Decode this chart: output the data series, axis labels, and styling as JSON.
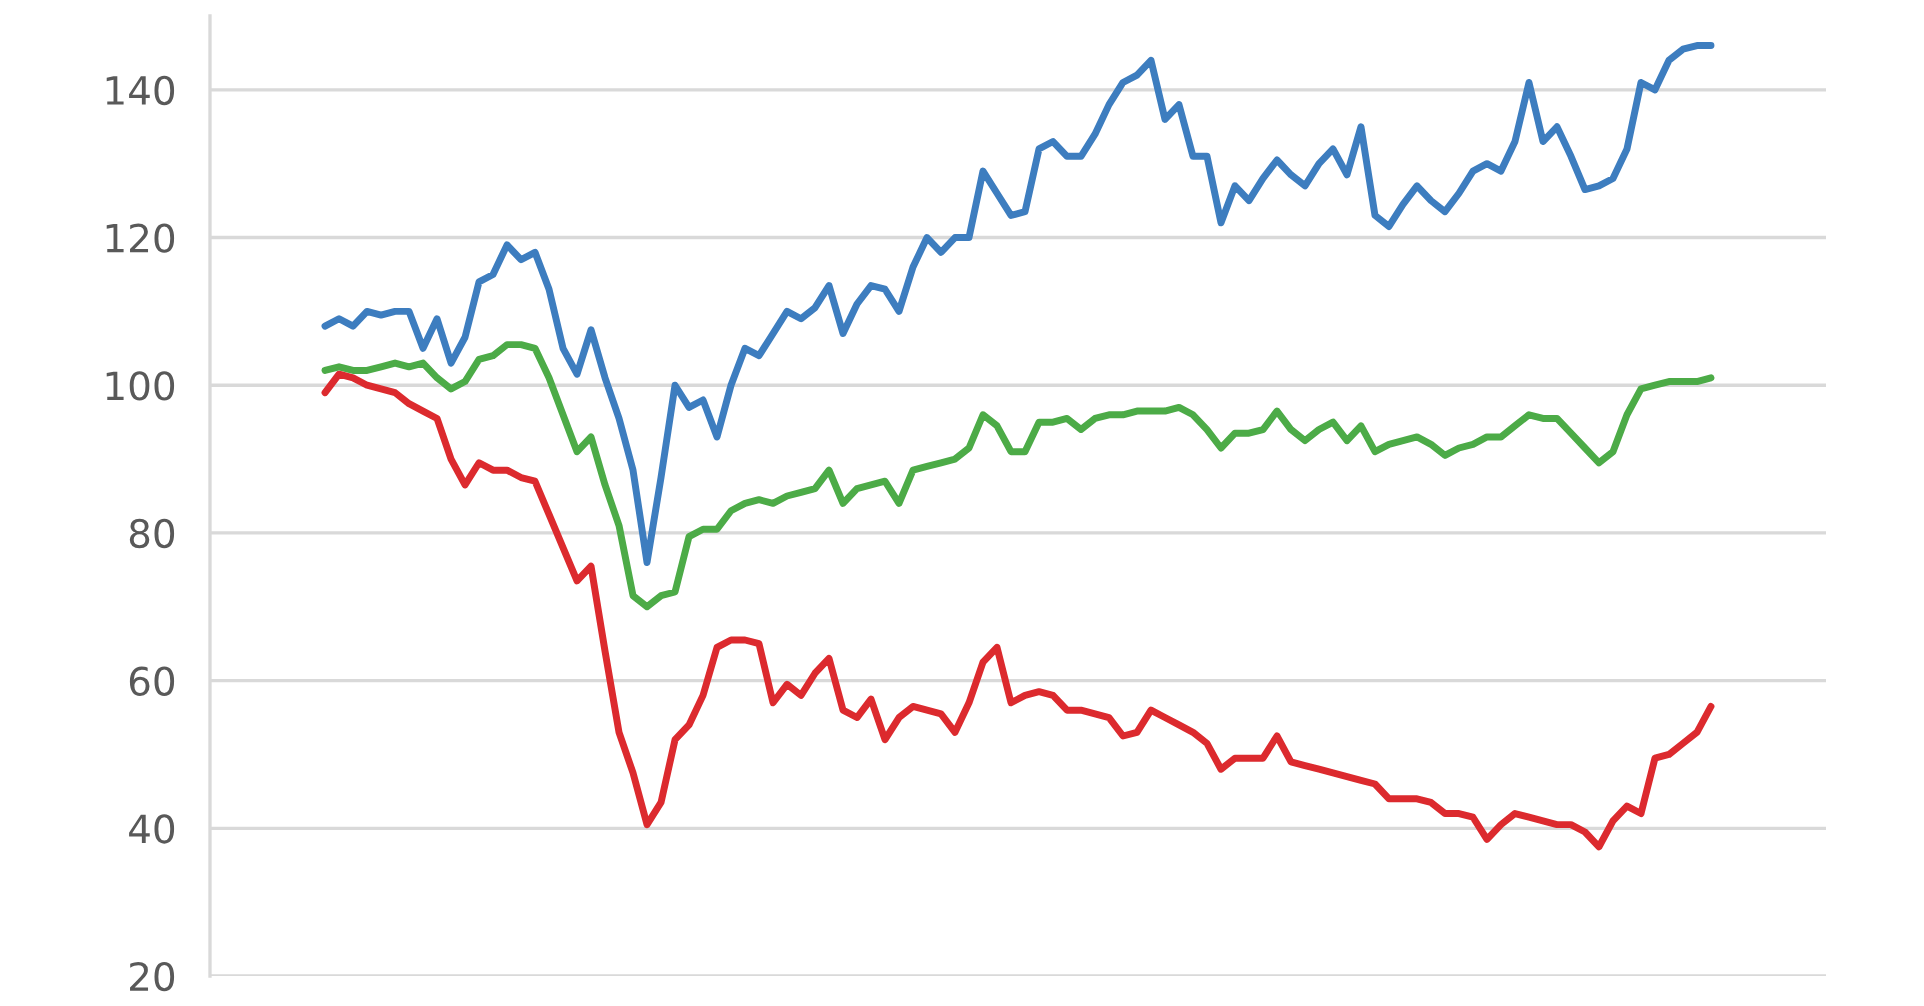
{
  "chart_data": {
    "type": "line",
    "categories": [
      null,
      null,
      null,
      null,
      null,
      null,
      null,
      null,
      null,
      null,
      null,
      null,
      null,
      null,
      null,
      null,
      null,
      null,
      null,
      null,
      null,
      null,
      null,
      null,
      null,
      null,
      null,
      null,
      null,
      null,
      null,
      null,
      null,
      null,
      null,
      null,
      null,
      null,
      null,
      null,
      null,
      null,
      null,
      null,
      null,
      null,
      null,
      null,
      null,
      null,
      null,
      null,
      null,
      null,
      null,
      null,
      null,
      null,
      null,
      null,
      null,
      null,
      null,
      null,
      null,
      null,
      null,
      null,
      null,
      null,
      null,
      null,
      null,
      null,
      null,
      null,
      null,
      null,
      null,
      null,
      null,
      null,
      null,
      null,
      null,
      null,
      null,
      null,
      null,
      null,
      null,
      null,
      null,
      null,
      null,
      null,
      null,
      null,
      null,
      null
    ],
    "series": [
      {
        "color": "#3d7dbf",
        "values": [
          108,
          109,
          108,
          110,
          109.5,
          110,
          110,
          105,
          109,
          103,
          106.5,
          114,
          115,
          119,
          117,
          118,
          113,
          105,
          101.5,
          107.5,
          101,
          95.5,
          88.5,
          76,
          87.5,
          100,
          97,
          98,
          93,
          100,
          105,
          104,
          107,
          110,
          109,
          110.5,
          113.5,
          107,
          111,
          113.5,
          113,
          110,
          116,
          120,
          118,
          120,
          120,
          129,
          126,
          123,
          123.5,
          132,
          133,
          131,
          131,
          134,
          138,
          141,
          142,
          144,
          136,
          138,
          131,
          131,
          122,
          127,
          125,
          128,
          130.5,
          128.5,
          127,
          130,
          132,
          128.5,
          135,
          123,
          121.5,
          124.5,
          127,
          125,
          123.5,
          126,
          129,
          130,
          129,
          133,
          141,
          133,
          135,
          131,
          126.5,
          127,
          128,
          132,
          141,
          140,
          144,
          145.5,
          146,
          146
        ]
      },
      {
        "color": "#4cab47",
        "values": [
          102,
          102.5,
          102,
          102,
          102.5,
          103,
          102.5,
          103,
          101,
          99.5,
          100.5,
          103.5,
          104,
          105.5,
          105.5,
          105,
          101,
          96,
          91,
          93,
          86.5,
          81,
          71.5,
          70,
          71.5,
          72,
          79.5,
          80.5,
          80.5,
          83,
          84,
          84.5,
          84,
          85,
          85.5,
          86,
          88.5,
          84,
          86,
          86.5,
          87,
          84,
          88.5,
          89,
          89.5,
          90,
          91.5,
          96,
          94.5,
          91,
          91,
          95,
          95,
          95.5,
          94,
          95.5,
          96,
          96,
          96.5,
          96.5,
          96.5,
          97,
          96,
          94,
          91.5,
          93.5,
          93.5,
          94,
          96.5,
          94,
          92.5,
          94,
          95,
          92.5,
          94.5,
          91,
          92,
          92.5,
          93,
          92,
          90.5,
          91.5,
          92,
          93,
          93,
          94.5,
          96,
          95.5,
          95.5,
          93.5,
          91.5,
          89.5,
          91,
          96,
          99.5,
          100,
          100.5,
          100.5,
          100.5,
          101
        ]
      },
      {
        "color": "#dc2a2e",
        "values": [
          99,
          101.5,
          101,
          100,
          99.5,
          99,
          97.5,
          96.5,
          95.5,
          90,
          86.5,
          89.5,
          88.5,
          88.5,
          87.5,
          87,
          82.5,
          78,
          73.5,
          75.5,
          64,
          53,
          47.5,
          40.5,
          43.5,
          52,
          54,
          58,
          64.5,
          65.5,
          65.5,
          65,
          57,
          59.5,
          58,
          61,
          63,
          56,
          55,
          57.5,
          52,
          55,
          56.5,
          56,
          55.5,
          53,
          57,
          62.5,
          64.5,
          57,
          58,
          58.5,
          58,
          56,
          56,
          55.5,
          55,
          52.5,
          53,
          56,
          55,
          54,
          53,
          51.5,
          48,
          49.5,
          49.5,
          49.5,
          52.5,
          49,
          48.5,
          48,
          47.5,
          47,
          46.5,
          46,
          44,
          44,
          44,
          43.5,
          42,
          42,
          41.5,
          38.5,
          40.5,
          42,
          41.5,
          41,
          40.5,
          40.5,
          39.5,
          37.5,
          41,
          43,
          42,
          49.5,
          50,
          51.5,
          53,
          56.5
        ]
      }
    ],
    "ylim": [
      20,
      150
    ],
    "yticks": [
      20,
      40,
      60,
      80,
      100,
      120,
      140
    ],
    "grid": "y",
    "tick_labels": "y"
  }
}
